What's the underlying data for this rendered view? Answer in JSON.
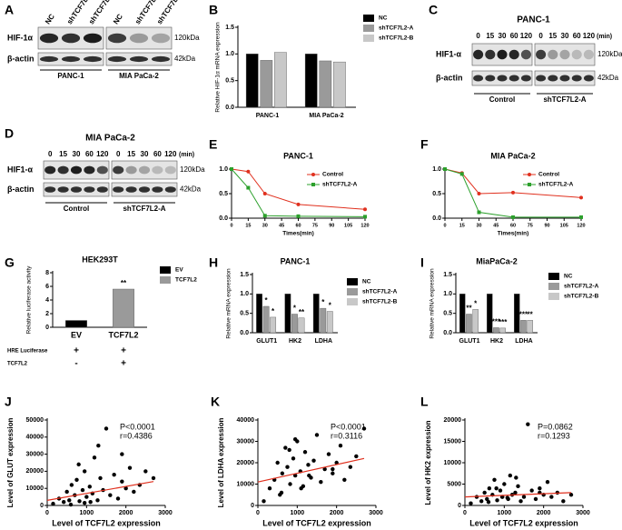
{
  "blots": [
    {
      "label": "A",
      "rows": [
        "HIF-1α",
        "β-actin"
      ],
      "lanes": [
        [
          "NC",
          "shTCF7L2-A",
          "shTCF7L2-B"
        ],
        [
          "NC",
          "shTCF7L2-A",
          "shTCF7L2-B"
        ]
      ],
      "sizes": [
        "120kDa",
        "42kDa"
      ],
      "groups": [
        "PANC-1",
        "MIA PaCa-2"
      ]
    },
    {
      "label": "C",
      "title": "PANC-1",
      "rows": [
        "HIF1-α",
        "β-actin"
      ],
      "lanes": [
        [
          "0",
          "15",
          "30",
          "60",
          "120"
        ],
        [
          "0",
          "15",
          "30",
          "60",
          "120"
        ]
      ],
      "unit": "(min)",
      "sizes": [
        "120kDa",
        "42kDa"
      ],
      "groups": [
        "Control",
        "shTCF7L2-A"
      ]
    },
    {
      "label": "D",
      "title": "MIA PaCa-2",
      "rows": [
        "HIF1-α",
        "β-actin"
      ],
      "lanes": [
        [
          "0",
          "15",
          "30",
          "60",
          "120"
        ],
        [
          "0",
          "15",
          "30",
          "60",
          "120"
        ]
      ],
      "unit": "(min)",
      "sizes": [
        "120kDa",
        "42kDa"
      ],
      "groups": [
        "Control",
        "shTCF7L2-A"
      ]
    }
  ],
  "chart_data": [
    {
      "label": "B",
      "type": "bar",
      "categories": [
        "PANC-1",
        "MIA PaCa-2"
      ],
      "y_label": "Relative HIF-1α mRNA expression",
      "series": [
        {
          "name": "NC",
          "color": "#000000",
          "values": [
            1.0,
            1.0
          ]
        },
        {
          "name": "shTCF7L2-A",
          "color": "#9a9a9a",
          "values": [
            0.88,
            0.87
          ]
        },
        {
          "name": "shTCF7L2-B",
          "color": "#c8c8c8",
          "values": [
            1.03,
            0.85
          ]
        }
      ],
      "ylim": [
        0,
        1.5
      ],
      "yticks": [
        {
          "value": 0,
          "label": "0.0"
        },
        {
          "value": 0.5,
          "label": "0.5"
        },
        {
          "value": 1,
          "label": "1.0"
        },
        {
          "value": 1.5,
          "label": "1.5"
        }
      ]
    },
    {
      "label": "E",
      "type": "line",
      "title": "PANC-1",
      "x_label": "Times(min)",
      "x": [
        0,
        15,
        30,
        60,
        120
      ],
      "series": [
        {
          "name": "Control",
          "color": "#e0301e",
          "marker": "circle",
          "values": [
            1.0,
            0.95,
            0.5,
            0.28,
            0.18
          ]
        },
        {
          "name": "shTCF7L2-A",
          "color": "#2ca02c",
          "marker": "square",
          "values": [
            1.0,
            0.62,
            0.05,
            0.04,
            0.03
          ]
        }
      ],
      "xlim": [
        0,
        120
      ],
      "xticks": [
        0,
        15,
        30,
        45,
        60,
        75,
        90,
        105,
        120
      ],
      "ylim": [
        0,
        1
      ],
      "yticks": [
        {
          "value": 0,
          "label": "0.0"
        },
        {
          "value": 0.5,
          "label": "0.5"
        },
        {
          "value": 1,
          "label": "1.0"
        }
      ]
    },
    {
      "label": "F",
      "type": "line",
      "title": "MIA PaCa-2",
      "x_label": "Times(min)",
      "x": [
        0,
        15,
        30,
        60,
        120
      ],
      "series": [
        {
          "name": "Control",
          "color": "#e0301e",
          "marker": "circle",
          "values": [
            1.0,
            0.92,
            0.5,
            0.52,
            0.42
          ]
        },
        {
          "name": "shTCF7L2-A",
          "color": "#2ca02c",
          "marker": "square",
          "values": [
            1.0,
            0.9,
            0.12,
            0.02,
            0.02
          ]
        }
      ],
      "xlim": [
        0,
        120
      ],
      "xticks": [
        0,
        15,
        30,
        45,
        60,
        75,
        90,
        105,
        120
      ],
      "ylim": [
        0,
        1
      ],
      "yticks": [
        {
          "value": 0,
          "label": "0.0"
        },
        {
          "value": 0.5,
          "label": "0.5"
        },
        {
          "value": 1,
          "label": "1.0"
        }
      ]
    },
    {
      "label": "G",
      "type": "bar",
      "title": "HEK293T",
      "y_label": "Relative luciferase activity",
      "categories": [
        "EV",
        "TCF7L2"
      ],
      "values": [
        1.0,
        5.6
      ],
      "colors": [
        "#000000",
        "#9a9a9a"
      ],
      "significance": [
        null,
        "**"
      ],
      "ylim": [
        0,
        8
      ],
      "yticks": [
        0,
        2,
        4,
        6,
        8
      ],
      "condition_rows": [
        {
          "label": "HRE Luciferase",
          "marks": [
            "+",
            "+"
          ]
        },
        {
          "label": "TCF7L2",
          "marks": [
            "-",
            "+"
          ]
        }
      ]
    },
    {
      "label": "H",
      "type": "bar",
      "title": "PANC-1",
      "y_label": "Relative mRNA expression",
      "categories": [
        "GLUT1",
        "HK2",
        "LDHA"
      ],
      "series": [
        {
          "name": "NC",
          "color": "#000000",
          "values": [
            1.0,
            1.0,
            1.0
          ]
        },
        {
          "name": "shTCF7L2-A",
          "color": "#9a9a9a",
          "values": [
            0.68,
            0.48,
            0.63
          ],
          "significance": [
            "*",
            "*",
            "*"
          ]
        },
        {
          "name": "shTCF7L2-B",
          "color": "#c8c8c8",
          "values": [
            0.4,
            0.38,
            0.55
          ],
          "significance": [
            "*",
            "**",
            "*"
          ]
        }
      ],
      "ylim": [
        0,
        1.5
      ],
      "yticks": [
        {
          "value": 0,
          "label": "0.0"
        },
        {
          "value": 0.5,
          "label": "0.5"
        },
        {
          "value": 1,
          "label": "1.0"
        },
        {
          "value": 1.5,
          "label": "1.5"
        }
      ]
    },
    {
      "label": "I",
      "type": "bar",
      "title": "MiaPaCa-2",
      "y_label": "Relative mRNA expression",
      "categories": [
        "GLUT1",
        "HK2",
        "LDHA"
      ],
      "series": [
        {
          "name": "NC",
          "color": "#000000",
          "values": [
            1.0,
            1.0,
            1.0
          ]
        },
        {
          "name": "shTCF7L2-A",
          "color": "#9a9a9a",
          "values": [
            0.48,
            0.13,
            0.32
          ],
          "significance": [
            "**",
            "***",
            "***"
          ]
        },
        {
          "name": "shTCF7L2-B",
          "color": "#c8c8c8",
          "values": [
            0.6,
            0.12,
            0.32
          ],
          "significance": [
            "*",
            "***",
            "**"
          ]
        }
      ],
      "ylim": [
        0,
        1.5
      ],
      "yticks": [
        {
          "value": 0,
          "label": "0.0"
        },
        {
          "value": 0.5,
          "label": "0.5"
        },
        {
          "value": 1,
          "label": "1.0"
        },
        {
          "value": 1.5,
          "label": "1.5"
        }
      ]
    },
    {
      "label": "J",
      "type": "scatter",
      "x_label": "Level of TCF7L2 expression",
      "y_label": "Level of GLUT expression",
      "annotations": [
        "P<0.0001",
        "r=0.4386"
      ],
      "x": [
        150,
        300,
        420,
        500,
        560,
        620,
        700,
        750,
        820,
        900,
        950,
        1000,
        1080,
        1150,
        1200,
        1280,
        1350,
        1420,
        1500,
        1600,
        1700,
        1800,
        1900,
        2000,
        2100,
        2200,
        2350,
        2500,
        2700,
        600,
        800,
        1100,
        1300,
        950,
        1900
      ],
      "y": [
        1000,
        4000,
        2000,
        8000,
        3000,
        12000,
        6000,
        15000,
        2500,
        9000,
        20000,
        5000,
        11000,
        7000,
        28000,
        3000,
        16000,
        9000,
        45000,
        6000,
        18000,
        4000,
        14000,
        10000,
        22000,
        8000,
        12000,
        20000,
        16000,
        500,
        24000,
        2000,
        35000,
        1500,
        30000
      ],
      "trend": {
        "color": "#e0301e",
        "x": [
          0,
          2700
        ],
        "y": [
          3000,
          14000
        ]
      },
      "xlim": [
        0,
        3000
      ],
      "xticks": [
        0,
        1000,
        2000,
        3000
      ],
      "ylim": [
        0,
        50000
      ],
      "yticks": [
        0,
        10000,
        20000,
        30000,
        40000,
        50000
      ]
    },
    {
      "label": "K",
      "type": "scatter",
      "x_label": "Level of TCF7L2 expression",
      "y_label": "Level of LDHA expression",
      "annotations": [
        "P<0.0001",
        "r=0.3116"
      ],
      "x": [
        150,
        300,
        420,
        500,
        560,
        620,
        700,
        750,
        820,
        900,
        950,
        1000,
        1080,
        1150,
        1200,
        1280,
        1350,
        1420,
        1500,
        1600,
        1700,
        1800,
        1900,
        2000,
        2100,
        2200,
        2350,
        2500,
        2700,
        600,
        800,
        1100,
        1300,
        950,
        1900
      ],
      "y": [
        2000,
        8000,
        12000,
        20000,
        5000,
        15000,
        27000,
        18000,
        10000,
        22000,
        14000,
        30000,
        16000,
        9000,
        25000,
        19000,
        13000,
        21000,
        33000,
        11000,
        17000,
        24000,
        15000,
        20000,
        28000,
        12000,
        18000,
        23000,
        36000,
        6000,
        26000,
        8000,
        14000,
        31000,
        17000
      ],
      "trend": {
        "color": "#e0301e",
        "x": [
          0,
          2700
        ],
        "y": [
          11000,
          22000
        ]
      },
      "xlim": [
        0,
        3000
      ],
      "xticks": [
        0,
        1000,
        2000,
        3000
      ],
      "ylim": [
        0,
        40000
      ],
      "yticks": [
        0,
        10000,
        20000,
        30000,
        40000
      ]
    },
    {
      "label": "L",
      "type": "scatter",
      "x_label": "Level of TCF7L2 expression",
      "y_label": "Level of HK2 expression",
      "annotations": [
        "P=0.0862",
        "r=0.1293"
      ],
      "x": [
        150,
        300,
        420,
        500,
        560,
        620,
        700,
        750,
        820,
        900,
        950,
        1000,
        1080,
        1150,
        1200,
        1280,
        1350,
        1420,
        1500,
        1600,
        1700,
        1800,
        1900,
        2000,
        2100,
        2200,
        2350,
        2500,
        2700,
        600,
        800,
        1100,
        1300,
        950,
        1900
      ],
      "y": [
        500,
        2000,
        1000,
        3000,
        1500,
        4000,
        2500,
        6000,
        1200,
        3500,
        2000,
        5000,
        1800,
        7000,
        2500,
        3000,
        4500,
        1000,
        2000,
        19000,
        3500,
        1500,
        4000,
        2500,
        5500,
        2000,
        3000,
        1000,
        2500,
        800,
        4000,
        1500,
        6500,
        2000,
        3000
      ],
      "trend": {
        "color": "#e0301e",
        "x": [
          0,
          2700
        ],
        "y": [
          2000,
          3000
        ]
      },
      "xlim": [
        0,
        3000
      ],
      "xticks": [
        0,
        1000,
        2000,
        3000
      ],
      "ylim": [
        0,
        20000
      ],
      "yticks": [
        0,
        5000,
        10000,
        15000,
        20000
      ]
    }
  ]
}
